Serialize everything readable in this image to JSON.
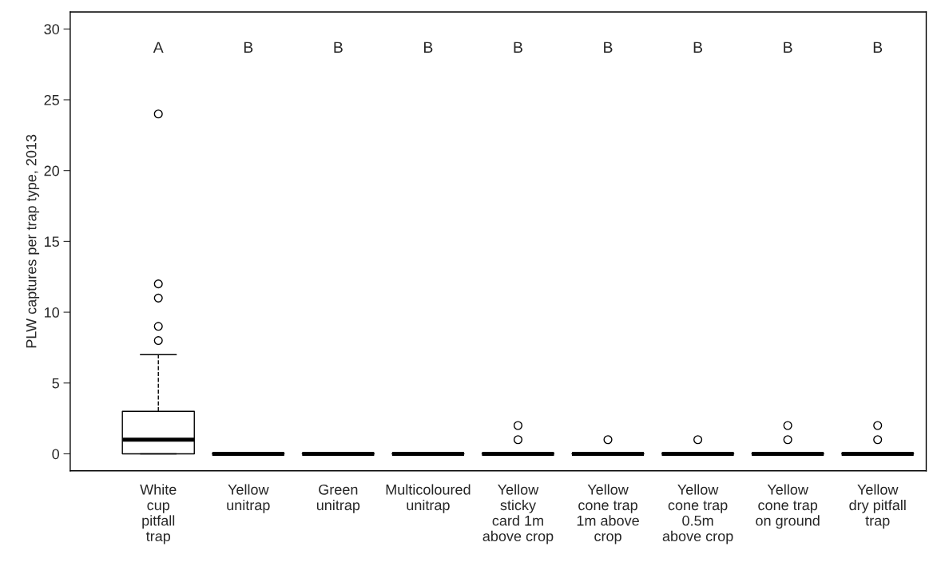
{
  "chart_data": {
    "type": "box",
    "ylabel": "PLW captures per trap type, 2013",
    "categories": [
      "White\ncup\npitfall\ntrap",
      "Yellow\nunitrap",
      "Green\nunitrap",
      "Multicoloured\nunitrap",
      "Yellow\nsticky\ncard 1m\nabove crop",
      "Yellow\ncone trap\n1m above\ncrop",
      "Yellow\ncone trap\n0.5m\nabove crop",
      "Yellow\ncone trap\non ground",
      "Yellow\ndry pitfall\ntrap"
    ],
    "boxes": [
      {
        "low": 0,
        "q1": 0,
        "median": 1,
        "q3": 3,
        "high": 7,
        "outliers": [
          8,
          9,
          11,
          12,
          24
        ]
      },
      {
        "low": 0,
        "q1": 0,
        "median": 0,
        "q3": 0,
        "high": 0
      },
      {
        "low": 0,
        "q1": 0,
        "median": 0,
        "q3": 0,
        "high": 0
      },
      {
        "low": 0,
        "q1": 0,
        "median": 0,
        "q3": 0,
        "high": 0
      },
      {
        "low": 0,
        "q1": 0,
        "median": 0,
        "q3": 0,
        "high": 0,
        "outliers": [
          1,
          2
        ]
      },
      {
        "low": 0,
        "q1": 0,
        "median": 0,
        "q3": 0,
        "high": 0,
        "outliers": [
          1
        ]
      },
      {
        "low": 0,
        "q1": 0,
        "median": 0,
        "q3": 0,
        "high": 0,
        "outliers": [
          1
        ]
      },
      {
        "low": 0,
        "q1": 0,
        "median": 0,
        "q3": 0,
        "high": 0,
        "outliers": [
          1,
          2
        ]
      },
      {
        "low": 0,
        "q1": 0,
        "median": 0,
        "q3": 0,
        "high": 0,
        "outliers": [
          1,
          2
        ]
      }
    ],
    "annotations": [
      "A",
      "B",
      "B",
      "B",
      "B",
      "B",
      "B",
      "B",
      "B"
    ],
    "ylim": [
      -1.2,
      31.2
    ],
    "yticks": [
      0,
      5,
      10,
      15,
      20,
      25,
      30
    ],
    "grid": false
  }
}
